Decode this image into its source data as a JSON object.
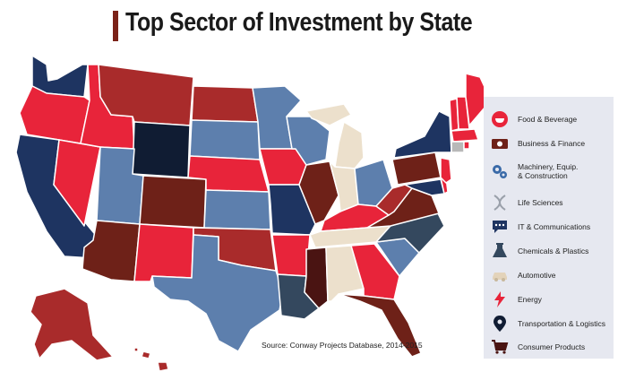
{
  "title": "Top Sector of Investment by State",
  "source": "Source: Conway Projects Database, 2014-2015",
  "colors": {
    "navy": "#1e3461",
    "red": "#e8243a",
    "darkred": "#a92b2b",
    "brown": "#6e2118",
    "steel": "#5d7fad",
    "dark": "#101c33",
    "tan": "#ece0cc",
    "slate": "#34485e",
    "maroon": "#4a1412",
    "gray": "#b8b8b8",
    "white": "#ffffff"
  },
  "legend": [
    {
      "label": "Food & Beverage",
      "icon": "bowl-icon"
    },
    {
      "label": "Business & Finance",
      "icon": "money-icon"
    },
    {
      "label": "Machinery, Equip. & Construction",
      "icon": "gears-icon"
    },
    {
      "label": "Life Sciences",
      "icon": "dna-icon"
    },
    {
      "label": "IT & Communications",
      "icon": "chat-bubble-icon"
    },
    {
      "label": "Chemicals & Plastics",
      "icon": "flask-icon"
    },
    {
      "label": "Automotive",
      "icon": "car-icon"
    },
    {
      "label": "Energy",
      "icon": "lightning-icon"
    },
    {
      "label": "Transportation & Logistics",
      "icon": "location-pin-icon"
    },
    {
      "label": "Consumer Products",
      "icon": "shopping-cart-icon"
    }
  ]
}
